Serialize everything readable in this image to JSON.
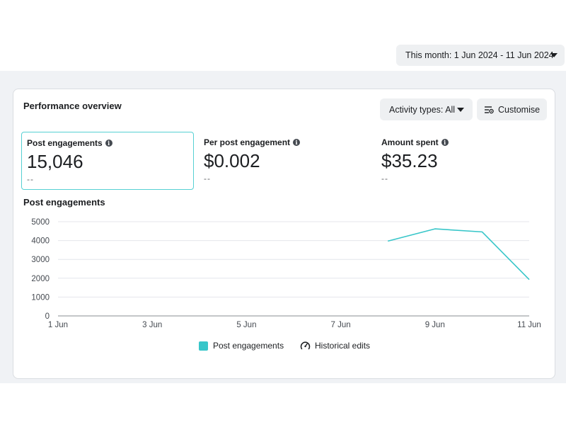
{
  "date_picker": {
    "label": "This month: 1 Jun 2024 - 11 Jun 2024",
    "icon": "caret-down-icon"
  },
  "card": {
    "title": "Performance overview",
    "activity_button": {
      "label": "Activity types: All",
      "icon": "caret-down-icon"
    },
    "customise_button": {
      "label": "Customise",
      "icon": "customise-icon"
    }
  },
  "metrics": [
    {
      "label": "Post engagements",
      "value": "15,046",
      "delta": "--",
      "selected": true
    },
    {
      "label": "Per post engagement",
      "value": "$0.002",
      "delta": "--",
      "selected": false
    },
    {
      "label": "Amount spent",
      "value": "$35.23",
      "delta": "--",
      "selected": false
    }
  ],
  "colors": {
    "accent": "#38c6c9",
    "selected_border": "#56d0d3",
    "grid": "#e4e6eb"
  },
  "chart_data": {
    "type": "line",
    "title": "Post engagements",
    "x_tick_labels": [
      "1 Jun",
      "3 Jun",
      "5 Jun",
      "7 Jun",
      "9 Jun",
      "11 Jun"
    ],
    "x_range": [
      1,
      11
    ],
    "ylim": [
      0,
      5000
    ],
    "y_ticks": [
      0,
      1000,
      2000,
      3000,
      4000,
      5000
    ],
    "grid": true,
    "legend_placement": "bottom",
    "series": [
      {
        "name": "Post engagements",
        "color": "#38c6c9",
        "points": [
          {
            "x": 8,
            "y": 3970
          },
          {
            "x": 9,
            "y": 4620
          },
          {
            "x": 10,
            "y": 4460
          },
          {
            "x": 11,
            "y": 1930
          }
        ]
      }
    ]
  },
  "legend": {
    "items": [
      {
        "label": "Post engagements",
        "icon": "teal-square-icon"
      },
      {
        "label": "Historical edits",
        "icon": "gauge-icon"
      }
    ]
  }
}
